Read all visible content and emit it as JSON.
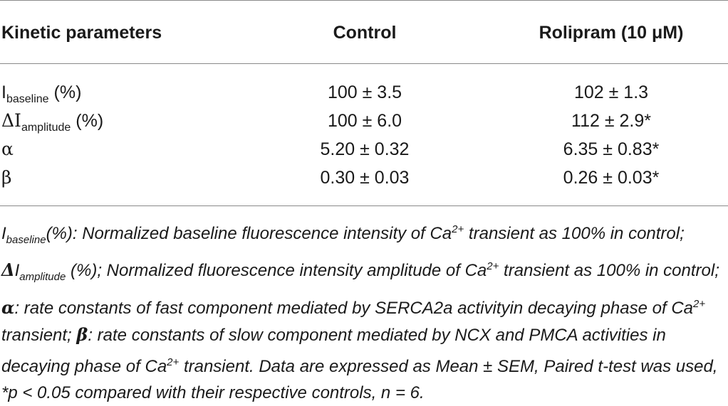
{
  "table": {
    "headers": [
      "Kinetic parameters",
      "Control",
      "Rolipram (10 μM)"
    ],
    "rows": [
      {
        "label_main": "I",
        "label_sub": "baseline",
        "label_tail": " (%)",
        "control": "100 ± 3.5",
        "rolipram": "102 ± 1.3"
      },
      {
        "label_main": "ΔI",
        "label_sub": "amplitude",
        "label_tail": " (%)",
        "control": "100 ± 6.0",
        "rolipram": "112 ± 2.9*"
      },
      {
        "label_main": "α",
        "label_sub": "",
        "label_tail": "",
        "control": "5.20 ± 0.32",
        "rolipram": "6.35 ± 0.83*"
      },
      {
        "label_main": "β",
        "label_sub": "",
        "label_tail": "",
        "control": "0.30 ± 0.03",
        "rolipram": "0.26 ± 0.03*"
      }
    ]
  },
  "footnote": {
    "p1_main": "I",
    "p1_sub": "baseline",
    "p1_text": "(%): Normalized baseline fluorescence intensity of Ca",
    "sup": "2+",
    "p2_text": " transient as 100% in control; ",
    "p2_sym": "Δ",
    "p2_main": "I",
    "p2_sub": "amplitude",
    "p2_tail": " (%); Normalized fluorescence intensity amplitude of Ca",
    "p3_text": " transient as 100% in control; ",
    "alpha": "α",
    "p3_tail": ": rate constants of fast component mediated by SERCA2a activityin decaying phase of Ca",
    "p4_text": " transient; ",
    "beta": "β",
    "p4_tail": ": rate constants of slow component mediated by NCX and PMCA activities in decaying phase of Ca",
    "p5_text": " transient. Data are expressed as Mean ± SEM, Paired t-test was used, *p < 0.05 compared with their respective controls, n = 6."
  }
}
